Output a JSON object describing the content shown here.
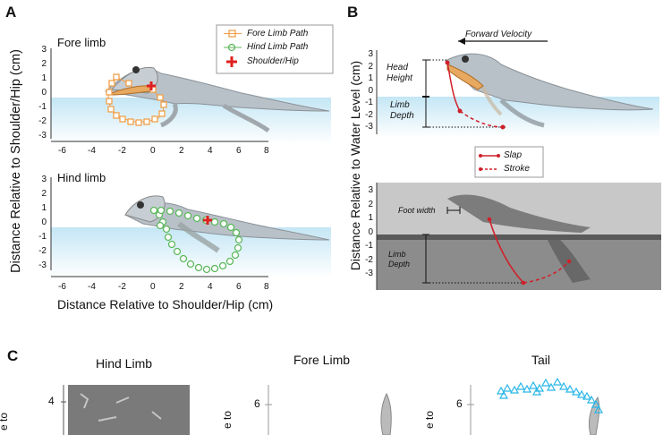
{
  "panelA": {
    "letter": "A",
    "fore_title": "Fore limb",
    "hind_title": "Hind limb",
    "ylabel": "Distance Relative to Shoulder/Hip (cm)",
    "xlabel": "Distance Relative to Shoulder/Hip (cm)",
    "yticks": [
      "3",
      "2",
      "1",
      "0",
      "-1",
      "-2",
      "-3"
    ],
    "xticks": [
      "-6",
      "-4",
      "-2",
      "0",
      "2",
      "4",
      "6",
      "8"
    ],
    "legend": {
      "fore": "Fore Limb Path",
      "hind": "Hind Limb Path",
      "marker": "Shoulder/Hip"
    },
    "colors": {
      "fore": "#f0a04b",
      "hind": "#5cb85c",
      "marker": "#e02020",
      "water": "#c9e8f6"
    }
  },
  "panelB": {
    "letter": "B",
    "velocity_label": "Forward Velocity",
    "ylabel": "Distance Relative to Water Level (cm)",
    "head_height": "Head Height",
    "limb_depth": "Limb Depth",
    "legend": {
      "slap": "Slap",
      "stroke": "Stroke"
    },
    "foot_width": "Foot width",
    "photo_limb_depth": "Limb Depth",
    "yticks": [
      "3",
      "2",
      "1",
      "0",
      "-1",
      "-2",
      "-3"
    ],
    "colors": {
      "slap": "#d0202a"
    }
  },
  "panelC": {
    "letter": "C",
    "hind_title": "Hind Limb",
    "fore_title": "Fore Limb",
    "tail_title": "Tail",
    "hind_axis_fragment": "e to",
    "fore_axis_fragment": "e to",
    "tail_axis_fragment": "e to",
    "hind_tick": "4",
    "fore_tick": "6",
    "tail_tick": "6",
    "colors": {
      "tail": "#29b6e8"
    }
  }
}
